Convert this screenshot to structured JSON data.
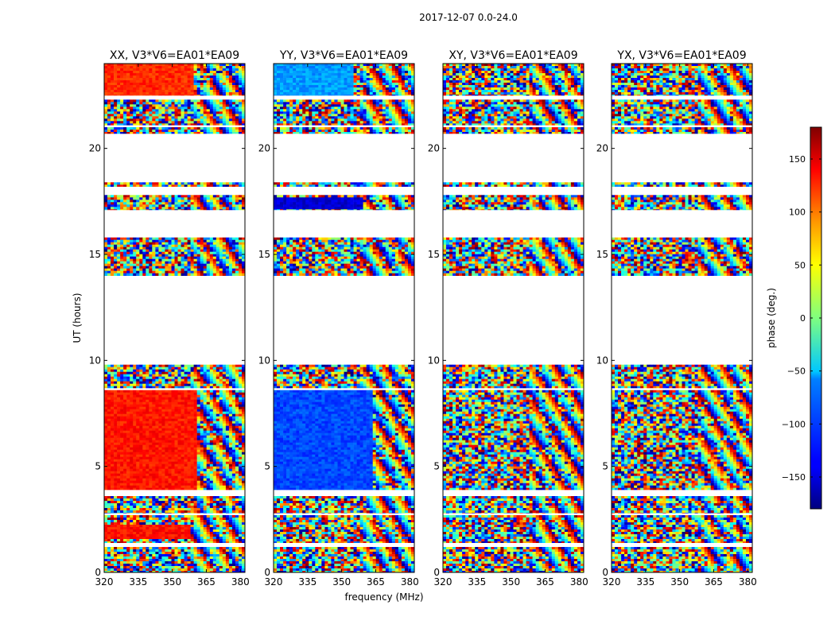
{
  "figure_title": "2017-12-07 0.0-24.0",
  "chart_data": [
    {
      "type": "heatmap",
      "title": "XX, V3*V6=EA01*EA09",
      "xlabel": "",
      "ylabel": "UT (hours)",
      "xlim": [
        320,
        382
      ],
      "ylim": [
        0,
        24
      ],
      "xticks": [
        320,
        335,
        350,
        365,
        380
      ],
      "yticks": [
        0,
        5,
        10,
        15,
        20
      ],
      "coherent_phase_blocks": [
        {
          "ut_start": 3.9,
          "ut_end": 8.6,
          "freq_start": 320,
          "freq_end": 361,
          "phase_deg": 128
        },
        {
          "ut_start": 22.5,
          "ut_end": 24.0,
          "freq_start": 320,
          "freq_end": 360,
          "phase_deg": 120
        },
        {
          "ut_start": 1.6,
          "ut_end": 2.3,
          "freq_start": 320,
          "freq_end": 358,
          "phase_deg": 130
        }
      ]
    },
    {
      "type": "heatmap",
      "title": "YY, V3*V6=EA01*EA09",
      "xlabel": "frequency (MHz)",
      "ylabel": "",
      "xlim": [
        320,
        382
      ],
      "ylim": [
        0,
        24
      ],
      "xticks": [
        320,
        335,
        350,
        365,
        380
      ],
      "yticks": [
        0,
        5,
        10,
        15,
        20
      ],
      "coherent_phase_blocks": [
        {
          "ut_start": 3.9,
          "ut_end": 8.6,
          "freq_start": 320,
          "freq_end": 363,
          "phase_deg": -110
        },
        {
          "ut_start": 17.2,
          "ut_end": 17.7,
          "freq_start": 320,
          "freq_end": 360,
          "phase_deg": -150
        },
        {
          "ut_start": 22.5,
          "ut_end": 24.0,
          "freq_start": 320,
          "freq_end": 355,
          "phase_deg": -80
        }
      ]
    },
    {
      "type": "heatmap",
      "title": "XY, V3*V6=EA01*EA09",
      "xlabel": "",
      "ylabel": "",
      "xlim": [
        320,
        382
      ],
      "ylim": [
        0,
        24
      ],
      "xticks": [
        320,
        335,
        350,
        365,
        380
      ],
      "yticks": [
        0,
        5,
        10,
        15,
        20
      ],
      "coherent_phase_blocks": []
    },
    {
      "type": "heatmap",
      "title": "YX, V3*V6=EA01*EA09",
      "xlabel": "",
      "ylabel": "",
      "xlim": [
        320,
        382
      ],
      "ylim": [
        0,
        24
      ],
      "xticks": [
        320,
        335,
        350,
        365,
        380
      ],
      "yticks": [
        0,
        5,
        10,
        15,
        20
      ],
      "coherent_phase_blocks": []
    }
  ],
  "data_segments_ut": [
    [
      0.0,
      1.2
    ],
    [
      1.4,
      2.7
    ],
    [
      2.8,
      3.6
    ],
    [
      3.9,
      8.6
    ],
    [
      8.7,
      9.8
    ],
    [
      14.0,
      15.8
    ],
    [
      17.1,
      17.8
    ],
    [
      18.2,
      18.4
    ],
    [
      20.7,
      21.0
    ],
    [
      21.1,
      22.3
    ],
    [
      22.5,
      24.0
    ]
  ],
  "colorbar": {
    "label": "phase (deg.)",
    "range": [
      -180,
      180
    ],
    "ticks": [
      150,
      100,
      50,
      0,
      -50,
      -100,
      -150
    ],
    "tick_labels": [
      "150",
      "100",
      "50",
      "0",
      "−50",
      "−100",
      "−150"
    ],
    "colormap": "jet"
  }
}
